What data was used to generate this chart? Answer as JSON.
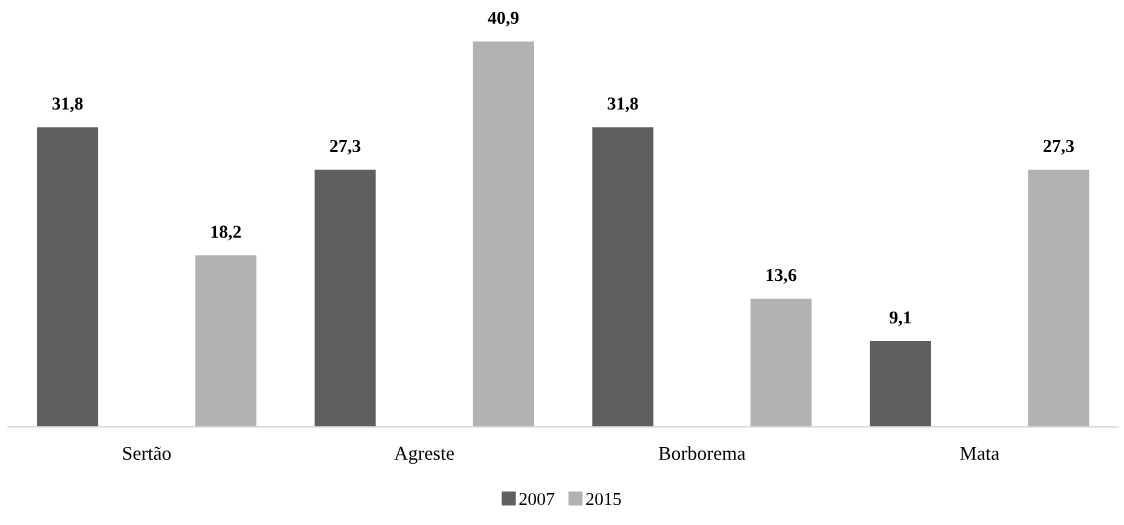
{
  "chart_data": {
    "type": "bar",
    "categories": [
      "Sertão",
      "Agreste",
      "Borborema",
      "Mata"
    ],
    "series": [
      {
        "name": "2007",
        "color": "#5f5f5f",
        "values": [
          31.8,
          27.3,
          31.8,
          9.1
        ],
        "value_labels": [
          "31,8",
          "27,3",
          "31,8",
          "9,1"
        ]
      },
      {
        "name": "2015",
        "color": "#b2b2b2",
        "values": [
          18.2,
          40.9,
          13.6,
          27.3
        ],
        "value_labels": [
          "18,2",
          "40,9",
          "13,6",
          "27,3"
        ]
      }
    ],
    "legend": "bottom",
    "grid": false
  }
}
